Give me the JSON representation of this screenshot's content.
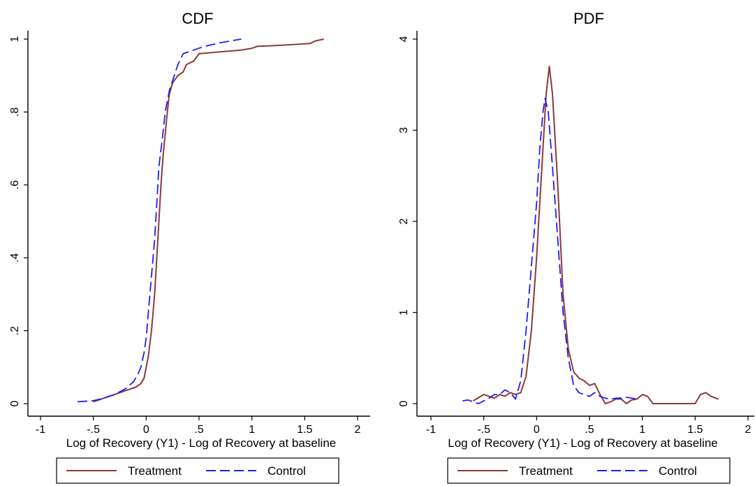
{
  "colors": {
    "treatment": "#8b3a3a",
    "control": "#1f1ff5",
    "axis": "#000000",
    "background": "#ffffff"
  },
  "legend": {
    "entries": [
      {
        "label": "Treatment",
        "color": "#8b3a3a",
        "dash": "solid"
      },
      {
        "label": "Control",
        "color": "#1f1ff5",
        "dash": "dashed"
      }
    ],
    "placement": "bottom"
  },
  "chart_data": [
    {
      "type": "line",
      "title": "CDF",
      "xlabel": "Log of Recovery (Y1) - Log of Recovery at baseline",
      "ylabel": "",
      "xlim": [
        -1,
        2
      ],
      "ylim": [
        0,
        1
      ],
      "xticks": [
        -1,
        -0.5,
        0,
        0.5,
        1,
        1.5,
        2
      ],
      "xtick_labels": [
        "-1",
        "-.5",
        "0",
        ".5",
        "1",
        "1.5",
        "2"
      ],
      "yticks": [
        0,
        0.2,
        0.4,
        0.6,
        0.8,
        1
      ],
      "ytick_labels": [
        "0",
        ".2",
        ".4",
        ".6",
        ".8",
        "1"
      ],
      "grid": false,
      "series": [
        {
          "name": "Treatment",
          "points": [
            [
              -0.5,
              0.005
            ],
            [
              -0.4,
              0.015
            ],
            [
              -0.3,
              0.025
            ],
            [
              -0.2,
              0.035
            ],
            [
              -0.1,
              0.045
            ],
            [
              -0.05,
              0.055
            ],
            [
              -0.02,
              0.07
            ],
            [
              0.0,
              0.1
            ],
            [
              0.02,
              0.13
            ],
            [
              0.05,
              0.2
            ],
            [
              0.08,
              0.3
            ],
            [
              0.1,
              0.4
            ],
            [
              0.12,
              0.5
            ],
            [
              0.14,
              0.6
            ],
            [
              0.16,
              0.68
            ],
            [
              0.18,
              0.74
            ],
            [
              0.2,
              0.8
            ],
            [
              0.22,
              0.85
            ],
            [
              0.25,
              0.88
            ],
            [
              0.3,
              0.9
            ],
            [
              0.35,
              0.91
            ],
            [
              0.38,
              0.93
            ],
            [
              0.45,
              0.94
            ],
            [
              0.5,
              0.96
            ],
            [
              0.7,
              0.965
            ],
            [
              0.9,
              0.97
            ],
            [
              1.0,
              0.975
            ],
            [
              1.05,
              0.98
            ],
            [
              1.2,
              0.982
            ],
            [
              1.4,
              0.985
            ],
            [
              1.55,
              0.988
            ],
            [
              1.6,
              0.995
            ],
            [
              1.68,
              1.0
            ]
          ]
        },
        {
          "name": "Control",
          "points": [
            [
              -0.65,
              0.005
            ],
            [
              -0.5,
              0.008
            ],
            [
              -0.4,
              0.015
            ],
            [
              -0.3,
              0.025
            ],
            [
              -0.2,
              0.04
            ],
            [
              -0.12,
              0.06
            ],
            [
              -0.08,
              0.08
            ],
            [
              -0.05,
              0.1
            ],
            [
              -0.02,
              0.14
            ],
            [
              0.0,
              0.18
            ],
            [
              0.02,
              0.25
            ],
            [
              0.05,
              0.35
            ],
            [
              0.08,
              0.45
            ],
            [
              0.1,
              0.55
            ],
            [
              0.12,
              0.65
            ],
            [
              0.15,
              0.72
            ],
            [
              0.18,
              0.8
            ],
            [
              0.22,
              0.86
            ],
            [
              0.3,
              0.93
            ],
            [
              0.35,
              0.96
            ],
            [
              0.45,
              0.97
            ],
            [
              0.55,
              0.98
            ],
            [
              0.7,
              0.99
            ],
            [
              0.9,
              1.0
            ]
          ]
        }
      ]
    },
    {
      "type": "line",
      "title": "PDF",
      "xlabel": "Log of Recovery (Y1) - Log of Recovery at baseline",
      "ylabel": "",
      "xlim": [
        -1,
        2
      ],
      "ylim": [
        0,
        4
      ],
      "xticks": [
        -1,
        -0.5,
        0,
        0.5,
        1,
        1.5,
        2
      ],
      "xtick_labels": [
        "-1",
        "-.5",
        "0",
        ".5",
        "1",
        "1.5",
        "2"
      ],
      "yticks": [
        0,
        1,
        2,
        3,
        4
      ],
      "ytick_labels": [
        "0",
        "1",
        "2",
        "3",
        "4"
      ],
      "grid": false,
      "series": [
        {
          "name": "Treatment",
          "points": [
            [
              -0.6,
              0.03
            ],
            [
              -0.5,
              0.1
            ],
            [
              -0.45,
              0.08
            ],
            [
              -0.4,
              0.06
            ],
            [
              -0.35,
              0.1
            ],
            [
              -0.3,
              0.08
            ],
            [
              -0.25,
              0.12
            ],
            [
              -0.2,
              0.1
            ],
            [
              -0.15,
              0.12
            ],
            [
              -0.1,
              0.3
            ],
            [
              -0.05,
              0.8
            ],
            [
              0.0,
              1.6
            ],
            [
              0.05,
              2.6
            ],
            [
              0.09,
              3.4
            ],
            [
              0.12,
              3.7
            ],
            [
              0.15,
              3.4
            ],
            [
              0.2,
              2.4
            ],
            [
              0.25,
              1.2
            ],
            [
              0.3,
              0.6
            ],
            [
              0.35,
              0.35
            ],
            [
              0.4,
              0.28
            ],
            [
              0.45,
              0.25
            ],
            [
              0.5,
              0.2
            ],
            [
              0.55,
              0.22
            ],
            [
              0.6,
              0.1
            ],
            [
              0.65,
              0.0
            ],
            [
              0.7,
              0.02
            ],
            [
              0.75,
              0.05
            ],
            [
              0.8,
              0.05
            ],
            [
              0.85,
              0.0
            ],
            [
              0.9,
              0.04
            ],
            [
              0.95,
              0.05
            ],
            [
              1.0,
              0.1
            ],
            [
              1.05,
              0.08
            ],
            [
              1.1,
              0.0
            ],
            [
              1.5,
              0.0
            ],
            [
              1.55,
              0.1
            ],
            [
              1.6,
              0.12
            ],
            [
              1.65,
              0.08
            ],
            [
              1.72,
              0.05
            ]
          ]
        },
        {
          "name": "Control",
          "points": [
            [
              -0.7,
              0.03
            ],
            [
              -0.65,
              0.04
            ],
            [
              -0.55,
              0.0
            ],
            [
              -0.5,
              0.03
            ],
            [
              -0.45,
              0.06
            ],
            [
              -0.4,
              0.1
            ],
            [
              -0.35,
              0.1
            ],
            [
              -0.3,
              0.15
            ],
            [
              -0.25,
              0.12
            ],
            [
              -0.2,
              0.05
            ],
            [
              -0.15,
              0.25
            ],
            [
              -0.1,
              0.8
            ],
            [
              -0.05,
              1.5
            ],
            [
              0.0,
              2.2
            ],
            [
              0.03,
              2.8
            ],
            [
              0.06,
              3.2
            ],
            [
              0.08,
              3.35
            ],
            [
              0.11,
              3.2
            ],
            [
              0.15,
              2.6
            ],
            [
              0.2,
              1.8
            ],
            [
              0.25,
              1.0
            ],
            [
              0.3,
              0.5
            ],
            [
              0.35,
              0.2
            ],
            [
              0.4,
              0.12
            ],
            [
              0.45,
              0.1
            ],
            [
              0.5,
              0.08
            ],
            [
              0.55,
              0.12
            ],
            [
              0.6,
              0.08
            ],
            [
              0.65,
              0.06
            ],
            [
              0.7,
              0.05
            ],
            [
              0.75,
              0.06
            ],
            [
              0.8,
              0.06
            ],
            [
              0.85,
              0.07
            ],
            [
              0.9,
              0.06
            ],
            [
              0.95,
              0.05
            ]
          ]
        }
      ]
    }
  ]
}
